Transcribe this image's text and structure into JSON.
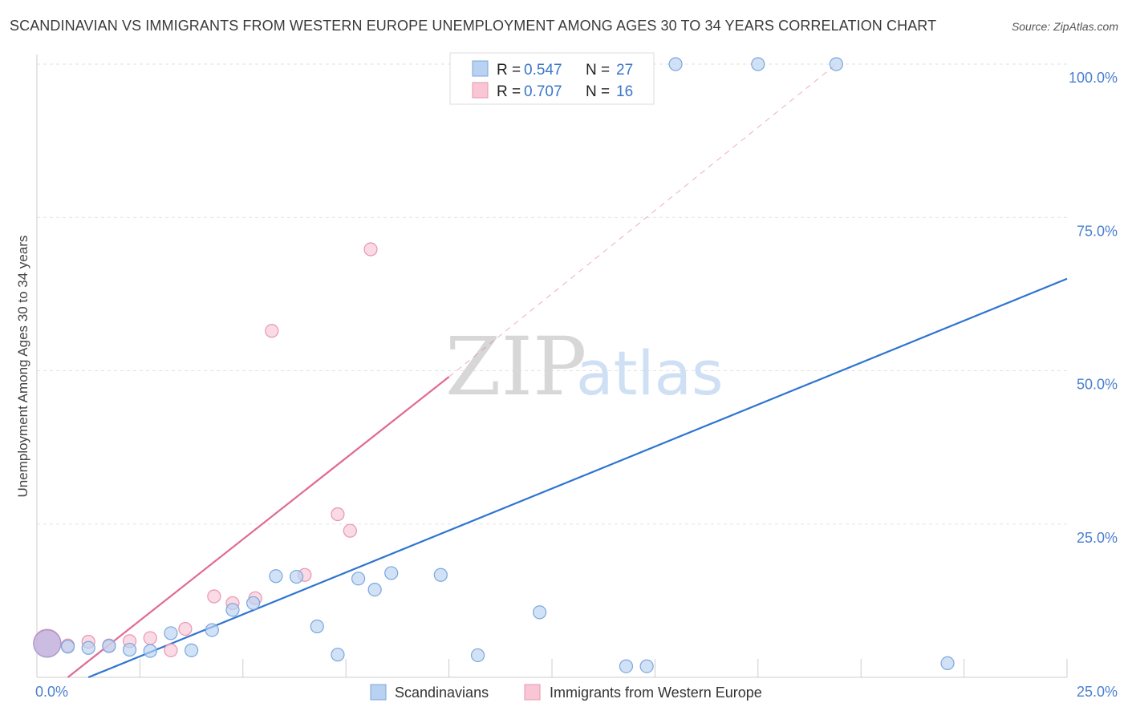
{
  "title": "SCANDINAVIAN VS IMMIGRANTS FROM WESTERN EUROPE UNEMPLOYMENT AMONG AGES 30 TO 34 YEARS CORRELATION CHART",
  "source": "Source: ZipAtlas.com",
  "watermark": {
    "zip": "ZIP",
    "atlas": "atlas"
  },
  "colors": {
    "scandinavians_fill": "#b9d2f1",
    "scandinavians_stroke": "#7aa6dd",
    "scandinavians_line": "#2f74d0",
    "immigrants_fill": "#f8c6d5",
    "immigrants_stroke": "#e995b0",
    "immigrants_line": "#e06a93",
    "tick_label": "#4a7fd0",
    "grid": "#e2e2e2"
  },
  "legend": {
    "rows": [
      {
        "r_label": "R =",
        "r_value": "0.547",
        "n_label": "N =",
        "n_value": "27"
      },
      {
        "r_label": "R =",
        "r_value": "0.707",
        "n_label": "N =",
        "n_value": "16"
      }
    ]
  },
  "chart_data": {
    "type": "scatter",
    "title": "SCANDINAVIAN VS IMMIGRANTS FROM WESTERN EUROPE UNEMPLOYMENT AMONG AGES 30 TO 34 YEARS CORRELATION CHART",
    "xlabel": "",
    "ylabel": "Unemployment Among Ages 30 to 34 years",
    "xlim": [
      0,
      25
    ],
    "ylim": [
      0,
      100
    ],
    "x_tick_labels": [
      "0.0%",
      "25.0%"
    ],
    "y_ticks": [
      25,
      50,
      75,
      100
    ],
    "y_tick_labels": [
      "25.0%",
      "50.0%",
      "75.0%",
      "100.0%"
    ],
    "grid": true,
    "legend_position": "top-center",
    "series": [
      {
        "name": "Scandinavians",
        "r": 0.547,
        "n": 27,
        "points": [
          {
            "x": 0.25,
            "y": 5.5,
            "big": true
          },
          {
            "x": 0.75,
            "y": 5.0
          },
          {
            "x": 1.25,
            "y": 4.8
          },
          {
            "x": 1.75,
            "y": 5.1
          },
          {
            "x": 2.25,
            "y": 4.5
          },
          {
            "x": 2.75,
            "y": 4.3
          },
          {
            "x": 3.25,
            "y": 7.2
          },
          {
            "x": 3.75,
            "y": 4.4
          },
          {
            "x": 4.25,
            "y": 7.7
          },
          {
            "x": 4.75,
            "y": 11.0
          },
          {
            "x": 5.25,
            "y": 12.1
          },
          {
            "x": 5.8,
            "y": 16.5
          },
          {
            "x": 6.3,
            "y": 16.4
          },
          {
            "x": 6.8,
            "y": 8.3
          },
          {
            "x": 7.3,
            "y": 3.7
          },
          {
            "x": 7.8,
            "y": 16.1
          },
          {
            "x": 8.2,
            "y": 14.3
          },
          {
            "x": 8.6,
            "y": 17.0
          },
          {
            "x": 9.8,
            "y": 16.7
          },
          {
            "x": 10.7,
            "y": 3.6
          },
          {
            "x": 12.2,
            "y": 10.6
          },
          {
            "x": 14.3,
            "y": 1.8
          },
          {
            "x": 14.8,
            "y": 1.8
          },
          {
            "x": 15.5,
            "y": 100.0
          },
          {
            "x": 17.5,
            "y": 100.0
          },
          {
            "x": 19.4,
            "y": 100.0
          },
          {
            "x": 22.1,
            "y": 2.3
          }
        ],
        "trend": {
          "x1": 1.25,
          "y1": 0.0,
          "x2": 25.0,
          "y2": 65.0
        }
      },
      {
        "name": "Immigrants from Western Europe",
        "r": 0.707,
        "n": 16,
        "points": [
          {
            "x": 0.25,
            "y": 5.6,
            "big": true
          },
          {
            "x": 0.75,
            "y": 5.2
          },
          {
            "x": 1.25,
            "y": 5.8
          },
          {
            "x": 1.75,
            "y": 5.2
          },
          {
            "x": 2.25,
            "y": 5.9
          },
          {
            "x": 2.75,
            "y": 6.4
          },
          {
            "x": 3.25,
            "y": 4.4
          },
          {
            "x": 3.6,
            "y": 7.9
          },
          {
            "x": 4.3,
            "y": 13.2
          },
          {
            "x": 4.75,
            "y": 12.1
          },
          {
            "x": 5.3,
            "y": 12.9
          },
          {
            "x": 5.7,
            "y": 56.5
          },
          {
            "x": 6.5,
            "y": 16.7
          },
          {
            "x": 7.3,
            "y": 26.6
          },
          {
            "x": 7.6,
            "y": 23.9
          },
          {
            "x": 8.1,
            "y": 69.8
          }
        ],
        "trend": {
          "x1": 0.75,
          "y1": 0.0,
          "x2": 10.0,
          "y2": 49.0
        },
        "trend_extension": {
          "x1": 10.0,
          "y1": 49.0,
          "x2": 19.4,
          "y2": 100.0
        }
      }
    ]
  }
}
